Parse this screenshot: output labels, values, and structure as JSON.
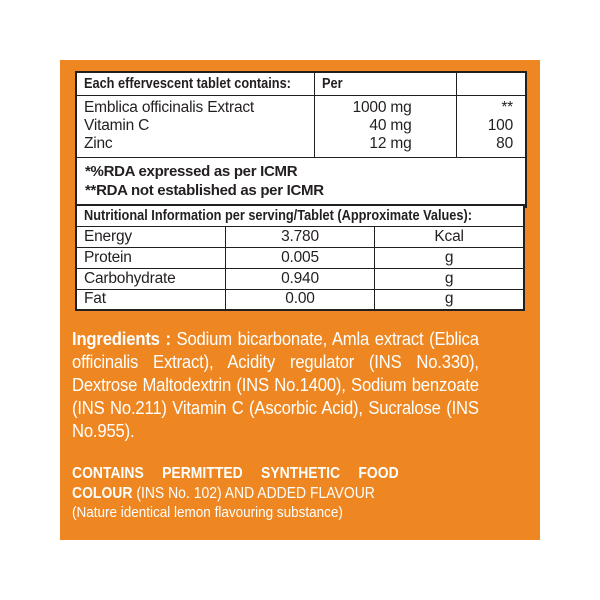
{
  "colors": {
    "page_bg": "#ffffff",
    "accent_orange": "#ee8722",
    "table_bg": "#ffffff",
    "text_dark": "#231f20",
    "text_light": "#ffffff"
  },
  "composition_table": {
    "header": {
      "col1": "Each effervescent tablet contains:",
      "col2": "Per",
      "col3": ""
    },
    "rows": [
      {
        "name": "Emblica officinalis Extract",
        "amount": "1000 mg",
        "rda": "**"
      },
      {
        "name": "Vitamin C",
        "amount": "40 mg",
        "rda": "100"
      },
      {
        "name": "Zinc",
        "amount": "12 mg",
        "rda": "80"
      }
    ],
    "footnotes": [
      "*%RDA expressed as per ICMR",
      "**RDA not established as per ICMR"
    ]
  },
  "nutrition_table": {
    "title": "Nutritional Information per serving/Tablet (Approximate Values):",
    "rows": [
      {
        "nutrient": "Energy",
        "value": "3.780",
        "unit": "Kcal"
      },
      {
        "nutrient": "Protein",
        "value": "0.005",
        "unit": "g"
      },
      {
        "nutrient": "Carbohydrate",
        "value": "0.940",
        "unit": "g"
      },
      {
        "nutrient": "Fat",
        "value": "0.00",
        "unit": "g"
      }
    ]
  },
  "ingredients": {
    "label": "Ingredients :",
    "text": "Sodium bicarbonate, Amla extract (Eblica officinalis Extract), Acidity regulator (INS No.330), Dextrose Maltodextrin (INS No.1400), Sodium benzoate (INS No.211) Vitamin C (Ascorbic Acid), Sucralose (INS No.955)."
  },
  "additives": {
    "bold_text": "CONTAINS PERMITTED SYNTHETIC FOOD COLOUR",
    "regular_text": "(INS No. 102) AND ADDED FLAVOUR",
    "note": "(Nature identical lemon flavouring substance)"
  }
}
